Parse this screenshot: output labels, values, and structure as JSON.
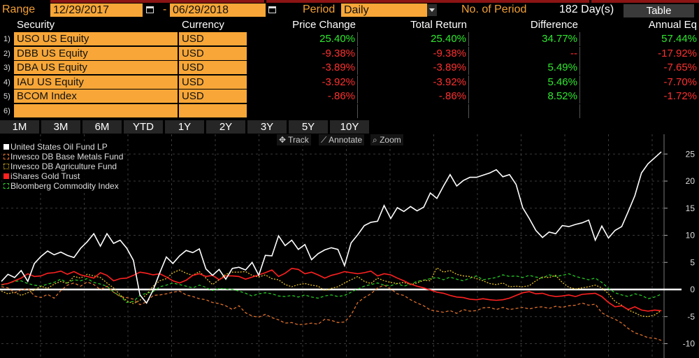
{
  "header": {
    "range_label": "Range",
    "start_date": "12/29/2017",
    "date_separator": "-",
    "end_date": "06/29/2018",
    "period_label": "Period",
    "period_value": "Daily",
    "num_period_label": "No. of Period",
    "num_period_value": "182 Day(s)",
    "table_button": "Table"
  },
  "table": {
    "columns": [
      "Security",
      "Currency",
      "Price Change",
      "Total Return",
      "Difference",
      "Annual Eq"
    ],
    "rows": [
      {
        "num": "1)",
        "security": "USO US Equity",
        "currency": "USD",
        "price_change": "25.40%",
        "total_return": "25.40%",
        "difference": "34.77%",
        "annual_eq": "57.44%"
      },
      {
        "num": "2)",
        "security": "DBB US Equity",
        "currency": "USD",
        "price_change": "-9.38%",
        "total_return": "-9.38%",
        "difference": "--",
        "annual_eq": "-17.92%"
      },
      {
        "num": "3)",
        "security": "DBA US Equity",
        "currency": "USD",
        "price_change": "-3.89%",
        "total_return": "-3.89%",
        "difference": "5.49%",
        "annual_eq": "-7.65%"
      },
      {
        "num": "4)",
        "security": "IAU US Equity",
        "currency": "USD",
        "price_change": "-3.92%",
        "total_return": "-3.92%",
        "difference": "5.46%",
        "annual_eq": "-7.70%"
      },
      {
        "num": "5)",
        "security": "BCOM Index",
        "currency": "USD",
        "price_change": "-.86%",
        "total_return": "-.86%",
        "difference": "8.52%",
        "annual_eq": "-1.72%"
      },
      {
        "num": "6)",
        "security": "",
        "currency": "",
        "price_change": "",
        "total_return": "",
        "difference": "",
        "annual_eq": ""
      }
    ]
  },
  "periods": [
    "1M",
    "3M",
    "6M",
    "YTD",
    "1Y",
    "2Y",
    "3Y",
    "5Y",
    "10Y"
  ],
  "toolbar": {
    "track": "Track",
    "annotate": "Annotate",
    "zoom": "Zoom"
  },
  "colors": {
    "orange": "#f7a637",
    "positive": "#2ee82e",
    "negative": "#ff3030"
  },
  "chart_data": {
    "type": "line",
    "y_ticks": [
      25,
      20,
      15,
      10,
      5,
      0,
      -5,
      -10
    ],
    "ylim": [
      -11,
      26
    ],
    "legend": [
      {
        "name": "United States Oil Fund LP",
        "color": "#ffffff",
        "style": "solid"
      },
      {
        "name": "Invesco DB Base Metals Fund",
        "color": "#e0702a",
        "style": "dashed"
      },
      {
        "name": "Invesco DB Agriculture Fund",
        "color": "#e8c020",
        "style": "dotted"
      },
      {
        "name": "iShares Gold Trust",
        "color": "#ff2020",
        "style": "solid"
      },
      {
        "name": "Bloomberg Commodity Index",
        "color": "#22c822",
        "style": "dashed"
      }
    ],
    "series": [
      {
        "name": "United States Oil Fund LP",
        "values": [
          1.5,
          2.8,
          2.2,
          3.5,
          1.5,
          4.8,
          6.1,
          7.1,
          6.4,
          6.9,
          6.3,
          5.9,
          7.6,
          8.8,
          10.3,
          8.0,
          10.3,
          8.5,
          9.1,
          7.6,
          5.4,
          -1.0,
          -2.5,
          -0.1,
          3.1,
          6.0,
          4.8,
          6.2,
          7.2,
          6.8,
          7.5,
          3.8,
          2.6,
          3.7,
          1.9,
          3.9,
          4.1,
          3.6,
          5.0,
          2.6,
          6.3,
          6.2,
          9.9,
          8.1,
          9.1,
          7.4,
          8.3,
          5.5,
          6.6,
          7.3,
          7.7,
          7.4,
          4.4,
          8.6,
          10.1,
          11.8,
          12.4,
          12.6,
          15.5,
          13.1,
          15.1,
          14.4,
          15.3,
          14.5,
          15.2,
          17.8,
          16.8,
          19.1,
          21.2,
          19.1,
          20.1,
          20.7,
          20.7,
          21.1,
          21.5,
          22.1,
          20.8,
          21.2,
          19.4,
          15.1,
          13.1,
          10.9,
          9.6,
          10.6,
          10.3,
          11.8,
          11.6,
          12.0,
          12.3,
          12.8,
          9.1,
          11.7,
          9.5,
          10.9,
          11.6,
          14.4,
          17.3,
          21.5,
          23.2,
          24.3,
          25.4
        ]
      },
      {
        "name": "Invesco DB Base Metals Fund",
        "values": [
          0.5,
          0.3,
          -0.6,
          -0.1,
          0.2,
          -1.2,
          -1.5,
          -0.9,
          -1.6,
          -0.2,
          0.8,
          1.2,
          0.6,
          1.4,
          0.9,
          0.0,
          0.6,
          -0.5,
          -1.3,
          -1.5,
          -1.8,
          -2.8,
          -2.3,
          -1.1,
          -1.0,
          -0.8,
          -0.5,
          -0.3,
          -1.0,
          -1.3,
          -1.7,
          -1.9,
          -2.4,
          -2.6,
          -3.0,
          -3.7,
          -3.0,
          -4.3,
          -4.9,
          -5.1,
          -4.6,
          -5.2,
          -5.6,
          -6.2,
          -6.1,
          -6.5,
          -6.4,
          -6.2,
          -6.4,
          -5.5,
          -5.7,
          -6.1,
          -6.0,
          -4.7,
          -2.4,
          -1.5,
          -0.8,
          0.3,
          0.8,
          0.1,
          -0.8,
          -1.1,
          -1.9,
          -2.5,
          -3.0,
          -3.8,
          -4.0,
          -4.2,
          -3.9,
          -4.4,
          -3.7,
          -4.0,
          -3.9,
          -3.4,
          -3.3,
          -3.7,
          -3.3,
          -3.7,
          -3.5,
          -3.3,
          -3.6,
          -3.3,
          -3.2,
          -3.5,
          -3.1,
          -3.3,
          -3.0,
          -2.9,
          -2.5,
          -2.9,
          -2.7,
          -4.3,
          -5.0,
          -5.5,
          -6.2,
          -7.2,
          -8.0,
          -8.4,
          -8.9,
          -9.0,
          -9.38
        ]
      },
      {
        "name": "Invesco DB Agriculture Fund",
        "values": [
          -0.3,
          -0.8,
          -0.5,
          -1.1,
          -0.6,
          -0.1,
          0.6,
          0.2,
          1.0,
          1.5,
          1.1,
          2.4,
          2.1,
          2.8,
          2.5,
          2.2,
          1.2,
          0.3,
          -1.0,
          -2.1,
          -2.6,
          -2.0,
          -0.9,
          0.6,
          1.6,
          2.0,
          3.1,
          3.6,
          3.0,
          2.6,
          3.3,
          2.1,
          0.9,
          1.8,
          2.8,
          3.2,
          3.2,
          3.3,
          2.6,
          2.3,
          2.7,
          2.0,
          1.8,
          0.9,
          0.5,
          0.9,
          1.1,
          0.8,
          0.6,
          -0.2,
          0.2,
          0.5,
          1.2,
          1.8,
          2.4,
          1.5,
          1.1,
          2.1,
          1.6,
          1.3,
          1.1,
          1.3,
          0.9,
          1.2,
          1.7,
          1.6,
          4.0,
          3.2,
          3.5,
          2.8,
          2.5,
          2.4,
          2.0,
          1.6,
          1.1,
          0.9,
          1.2,
          0.5,
          0.6,
          0.5,
          0.7,
          1.6,
          2.3,
          2.2,
          2.6,
          1.3,
          0.4,
          0.1,
          0.3,
          0.5,
          0.8,
          0.3,
          -0.8,
          -2.2,
          -2.9,
          -3.8,
          -4.3,
          -4.9,
          -5.0,
          -4.7,
          -3.89
        ]
      },
      {
        "name": "iShares Gold Trust",
        "values": [
          0.9,
          1.1,
          1.6,
          2.1,
          2.9,
          2.4,
          2.5,
          3.0,
          3.1,
          3.4,
          2.8,
          3.3,
          2.7,
          2.4,
          2.1,
          3.1,
          2.6,
          1.6,
          2.0,
          2.1,
          2.6,
          3.2,
          3.0,
          2.7,
          2.9,
          2.3,
          1.6,
          1.2,
          1.7,
          2.6,
          2.9,
          2.4,
          2.6,
          1.8,
          2.5,
          2.5,
          2.4,
          1.9,
          2.3,
          2.7,
          3.1,
          3.6,
          2.4,
          3.0,
          3.9,
          3.7,
          2.9,
          3.2,
          2.7,
          2.1,
          2.6,
          2.9,
          3.3,
          3.1,
          2.9,
          3.1,
          3.4,
          2.5,
          2.9,
          2.7,
          2.1,
          1.6,
          1.0,
          0.6,
          0.3,
          -0.1,
          -0.5,
          -0.7,
          -1.1,
          -1.4,
          -1.5,
          -1.8,
          -1.9,
          -1.7,
          -1.9,
          -2.0,
          -1.9,
          -1.6,
          -1.1,
          -0.6,
          -0.4,
          -0.8,
          -0.7,
          -1.1,
          -1.3,
          -1.2,
          -1.0,
          -1.3,
          -0.9,
          -0.8,
          -0.7,
          -1.3,
          -2.4,
          -3.2,
          -3.0,
          -3.7,
          -3.2,
          -3.8,
          -4.0,
          -3.8,
          -3.92
        ]
      },
      {
        "name": "Bloomberg Commodity Index",
        "values": [
          0.8,
          1.1,
          1.5,
          1.6,
          1.1,
          0.8,
          0.6,
          1.0,
          1.3,
          1.9,
          1.2,
          1.8,
          1.6,
          2.0,
          1.3,
          1.0,
          0.6,
          -0.5,
          -1.2,
          -2.4,
          -2.2,
          -1.1,
          -0.7,
          -0.4,
          0.5,
          0.8,
          1.2,
          0.9,
          0.6,
          0.3,
          0.8,
          0.4,
          -0.2,
          0.2,
          0.1,
          0.0,
          -0.3,
          -0.7,
          -1.2,
          -0.8,
          -0.6,
          -0.8,
          -1.2,
          -1.3,
          -1.1,
          -1.4,
          -1.0,
          -1.4,
          -1.6,
          -1.2,
          -1.0,
          -1.3,
          -1.1,
          -0.5,
          0.1,
          0.6,
          0.9,
          1.2,
          0.8,
          0.7,
          1.1,
          0.6,
          1.0,
          1.5,
          1.7,
          2.0,
          2.2,
          1.8,
          2.3,
          1.9,
          1.6,
          2.1,
          2.5,
          1.8,
          2.0,
          2.2,
          2.7,
          2.4,
          2.5,
          2.2,
          2.6,
          2.3,
          2.1,
          2.7,
          2.4,
          2.6,
          2.9,
          2.4,
          2.1,
          1.8,
          2.1,
          1.3,
          0.2,
          -0.6,
          -1.0,
          -1.3,
          -0.8,
          -1.1,
          -1.7,
          -1.4,
          -0.86
        ]
      }
    ]
  }
}
